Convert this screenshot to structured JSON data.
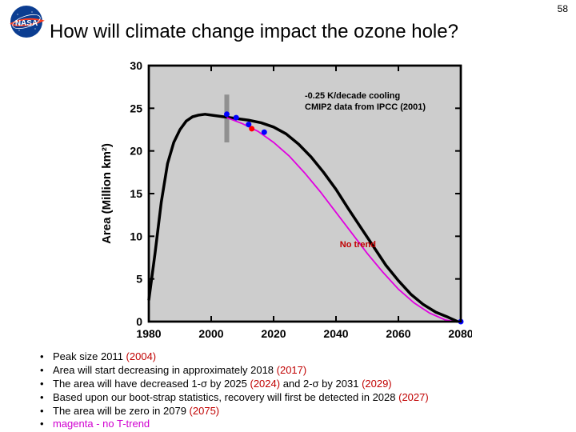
{
  "page_number": "58",
  "title": "How will climate change impact the ozone hole?",
  "logo": {
    "bg_color": "#0b3d91",
    "swoosh_color": "#fc3d21",
    "text_color": "#ffffff",
    "text": "NASA"
  },
  "chart": {
    "type": "line",
    "background_color": "#cdcdcd",
    "border_color": "#000000",
    "axis_color": "#000000",
    "xlim": [
      1980,
      2080
    ],
    "ylim": [
      0,
      30
    ],
    "xticks": [
      1980,
      2000,
      2020,
      2040,
      2060,
      2080
    ],
    "yticks": [
      0,
      5,
      10,
      15,
      20,
      25,
      30
    ],
    "ylabel": "Area (Million km²)",
    "ylabel_fontsize": 15,
    "tick_fontsize": 14,
    "black_curve": {
      "color": "#000000",
      "width": 3.5,
      "points": [
        [
          1980,
          2.5
        ],
        [
          1982,
          8
        ],
        [
          1984,
          14
        ],
        [
          1986,
          18.5
        ],
        [
          1988,
          21
        ],
        [
          1990,
          22.5
        ],
        [
          1992,
          23.5
        ],
        [
          1994,
          24
        ],
        [
          1996,
          24.2
        ],
        [
          1998,
          24.3
        ],
        [
          2000,
          24.2
        ],
        [
          2004,
          24
        ],
        [
          2008,
          23.8
        ],
        [
          2012,
          23.6
        ],
        [
          2016,
          23.3
        ],
        [
          2020,
          22.8
        ],
        [
          2024,
          22
        ],
        [
          2028,
          20.8
        ],
        [
          2032,
          19.3
        ],
        [
          2036,
          17.5
        ],
        [
          2040,
          15.5
        ],
        [
          2044,
          13.2
        ],
        [
          2048,
          11
        ],
        [
          2052,
          8.8
        ],
        [
          2056,
          6.6
        ],
        [
          2060,
          4.8
        ],
        [
          2064,
          3.2
        ],
        [
          2068,
          2
        ],
        [
          2072,
          1.1
        ],
        [
          2076,
          0.5
        ],
        [
          2079,
          0
        ]
      ]
    },
    "magenta_curve": {
      "color": "#e000e0",
      "width": 1.8,
      "points": [
        [
          2005,
          23.9
        ],
        [
          2010,
          23.2
        ],
        [
          2015,
          22.3
        ],
        [
          2020,
          21
        ],
        [
          2025,
          19.4
        ],
        [
          2030,
          17.4
        ],
        [
          2035,
          15.2
        ],
        [
          2040,
          12.8
        ],
        [
          2045,
          10.4
        ],
        [
          2050,
          8
        ],
        [
          2055,
          5.8
        ],
        [
          2060,
          3.8
        ],
        [
          2065,
          2.2
        ],
        [
          2070,
          1
        ],
        [
          2075,
          0.2
        ],
        [
          2078,
          0
        ]
      ]
    },
    "error_bar": {
      "x": 2005,
      "y_center": 23.8,
      "half_height": 2.8,
      "color": "#909090",
      "width": 6
    },
    "blue_points": {
      "color": "#0000ff",
      "radius": 3.5,
      "points": [
        [
          2005,
          24.3
        ],
        [
          2008,
          23.9
        ],
        [
          2012,
          23.1
        ],
        [
          2017,
          22.2
        ],
        [
          2080,
          0
        ]
      ]
    },
    "red_points": {
      "color": "#ff0000",
      "radius": 3.5,
      "points": [
        [
          2013,
          22.6
        ]
      ]
    }
  },
  "annotation1_line1": "-0.25 K/decade cooling",
  "annotation1_line2": "CMIP2 data from IPCC (2001)",
  "annotation2": "No trend",
  "annotation2_color": "#c00000",
  "bullets": [
    {
      "pre": "Peak size 2011 ",
      "red": "(2004)",
      "post": ""
    },
    {
      "pre": "Area will start decreasing in approximately 2018 ",
      "red": "(2017)",
      "post": ""
    },
    {
      "pre": "The area will have decreased 1-σ by 2025 ",
      "red": "(2024)",
      "post": " and 2-σ by 2031 ",
      "red2": "(2029)"
    },
    {
      "pre": "Based upon our boot-strap statistics, recovery will first be detected in 2028 ",
      "red": "(2027)",
      "post": ""
    },
    {
      "pre": "The area will be zero in 2079 ",
      "red": "(2075)",
      "post": ""
    },
    {
      "magenta": "magenta - no T-trend"
    }
  ]
}
